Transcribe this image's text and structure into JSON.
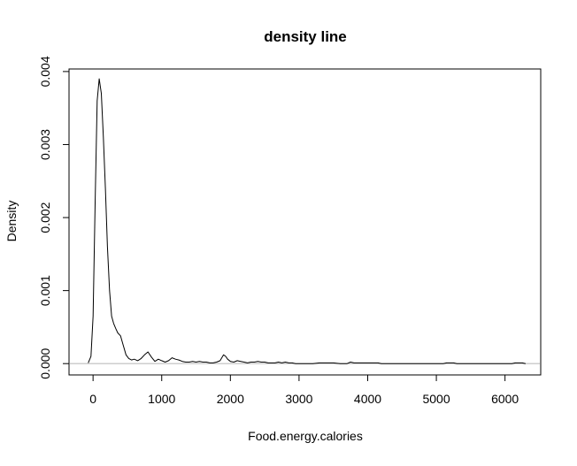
{
  "chart_data": {
    "type": "line",
    "title": "density line",
    "xlabel": "Food.energy.calories",
    "ylabel": "Density",
    "xlim": [
      -350,
      6520
    ],
    "ylim": [
      -0.000155,
      0.004035
    ],
    "x_ticks": [
      0,
      1000,
      2000,
      3000,
      4000,
      5000,
      6000
    ],
    "x_tick_labels": [
      "0",
      "1000",
      "2000",
      "3000",
      "4000",
      "5000",
      "6000"
    ],
    "y_ticks": [
      0,
      0.001,
      0.002,
      0.003,
      0.004
    ],
    "y_tick_labels": [
      "0.000",
      "0.001",
      "0.002",
      "0.003",
      "0.004"
    ],
    "baseline": 0,
    "grid": false,
    "series": [
      {
        "x": [
          -70,
          -30,
          0,
          30,
          60,
          90,
          120,
          150,
          180,
          210,
          240,
          270,
          300,
          330,
          360,
          400,
          440,
          480,
          520,
          560,
          600,
          650,
          700,
          750,
          800,
          850,
          900,
          950,
          1000,
          1050,
          1100,
          1150,
          1200,
          1250,
          1300,
          1350,
          1400,
          1450,
          1500,
          1550,
          1600,
          1650,
          1700,
          1750,
          1800,
          1850,
          1900,
          1930,
          1960,
          2000,
          2050,
          2100,
          2150,
          2200,
          2250,
          2300,
          2350,
          2400,
          2450,
          2500,
          2550,
          2600,
          2650,
          2700,
          2750,
          2800,
          2850,
          2900,
          2950,
          3000,
          3100,
          3200,
          3300,
          3350,
          3400,
          3450,
          3500,
          3600,
          3700,
          3750,
          3800,
          3850,
          3900,
          3950,
          4000,
          4050,
          4100,
          4150,
          4200,
          4250,
          4300,
          4500,
          4700,
          4900,
          5100,
          5150,
          5200,
          5250,
          5300,
          5500,
          5700,
          5900,
          6100,
          6150,
          6200,
          6250,
          6300
        ],
        "y": [
          1e-05,
          0.0001,
          0.00065,
          0.0022,
          0.0036,
          0.0039,
          0.0037,
          0.0031,
          0.0024,
          0.0016,
          0.001,
          0.00065,
          0.00055,
          0.00048,
          0.00042,
          0.00038,
          0.00025,
          0.00012,
          7e-05,
          5e-05,
          6e-05,
          4e-05,
          7e-05,
          0.00012,
          0.00016,
          9e-05,
          3e-05,
          6e-05,
          4e-05,
          2e-05,
          4e-05,
          8e-05,
          6e-05,
          5e-05,
          3e-05,
          2e-05,
          2e-05,
          3e-05,
          2e-05,
          3e-05,
          2e-05,
          2e-05,
          1e-05,
          1e-05,
          2e-05,
          4e-05,
          0.00012,
          0.0001,
          6e-05,
          3e-05,
          2e-05,
          4e-05,
          3e-05,
          2e-05,
          1e-05,
          2e-05,
          2e-05,
          3e-05,
          2e-05,
          2e-05,
          1e-05,
          1e-05,
          1e-05,
          2e-05,
          1e-05,
          2e-05,
          1e-05,
          1e-05,
          0,
          0,
          0,
          0,
          1e-05,
          1e-05,
          1e-05,
          1e-05,
          1e-05,
          0,
          0,
          2e-05,
          1e-05,
          1e-05,
          1e-05,
          1e-05,
          1e-05,
          1e-05,
          1e-05,
          1e-05,
          0,
          0,
          0,
          0,
          0,
          0,
          0,
          1e-05,
          1e-05,
          1e-05,
          0,
          0,
          0,
          0,
          0,
          1e-05,
          1e-05,
          1e-05,
          0
        ]
      }
    ]
  }
}
